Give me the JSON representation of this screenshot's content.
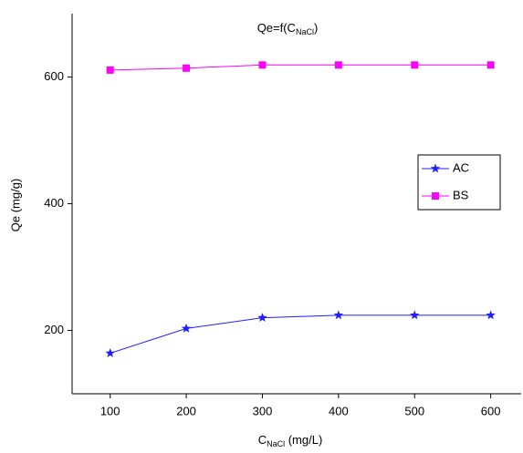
{
  "chart_data": {
    "type": "line",
    "title": [
      {
        "text": "Qe=f(C"
      },
      {
        "text": "NaCl",
        "subscript": true
      },
      {
        "text": ")"
      }
    ],
    "x_label": [
      {
        "text": "C"
      },
      {
        "text": "NaCl",
        "subscript": true
      },
      {
        "text": " (mg/L)"
      }
    ],
    "y_label": "Qe (mg/g)",
    "x": [
      100,
      200,
      300,
      400,
      500,
      600
    ],
    "series": [
      {
        "name": "AC",
        "color": "#1f1fff",
        "marker": "star",
        "values": [
          164,
          203,
          220,
          224,
          224,
          224
        ]
      },
      {
        "name": "BS",
        "color": "#ff00ff",
        "marker": "square",
        "values": [
          611,
          614,
          619,
          619,
          619,
          619
        ]
      }
    ],
    "xlim": [
      50,
      640
    ],
    "xticks": [
      100,
      200,
      300,
      400,
      500,
      600
    ],
    "ylim": [
      100,
      700
    ],
    "yticks": [
      200,
      400,
      600
    ],
    "legend": "right"
  }
}
